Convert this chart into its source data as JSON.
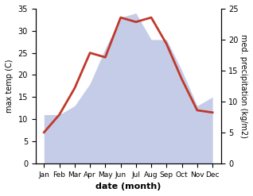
{
  "months": [
    "Jan",
    "Feb",
    "Mar",
    "Apr",
    "May",
    "Jun",
    "Jul",
    "Aug",
    "Sep",
    "Oct",
    "Nov",
    "Dec"
  ],
  "temp": [
    7,
    11,
    17,
    25,
    24,
    33,
    32,
    33,
    27,
    19,
    12,
    11.5
  ],
  "precip_left": [
    11,
    11,
    13,
    18,
    26,
    33,
    34,
    28,
    28,
    21,
    13,
    15
  ],
  "temp_color": "#c0392b",
  "precip_fill_color": "#c5cce8",
  "xlabel": "date (month)",
  "ylabel_left": "max temp (C)",
  "ylabel_right": "med. precipitation (kg/m2)",
  "ylim_left": [
    0,
    35
  ],
  "ylim_right": [
    0,
    25
  ],
  "yticks_left": [
    0,
    5,
    10,
    15,
    20,
    25,
    30,
    35
  ],
  "yticks_right": [
    0,
    5,
    10,
    15,
    20,
    25
  ],
  "line_width": 2.0,
  "bg_color": "#ffffff"
}
